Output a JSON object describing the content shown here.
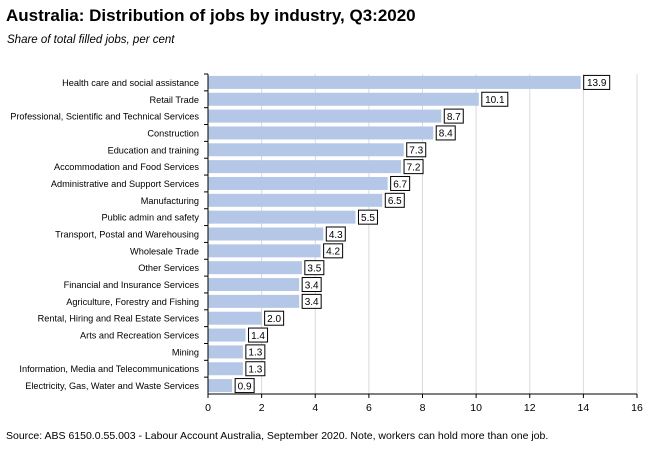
{
  "title": "Australia:  Distribution  of jobs by industry,  Q3:2020",
  "subtitle": "Share of total filled jobs, per cent",
  "source": "Source: ABS 6150.0.55.003 - Labour Account Australia, September 2020.  Note, workers can hold more than one job.",
  "colors": {
    "bar": "#b4c7e7",
    "grid": "#d9d9d9",
    "axis": "#000000",
    "label_border": "#000000"
  },
  "chart_data": {
    "type": "bar",
    "orientation": "horizontal",
    "categories": [
      "Health care and social assistance",
      "Retail Trade",
      "Professional, Scientific and Technical Services",
      "Construction",
      "Education and training",
      "Accommodation and Food Services",
      "Administrative and Support Services",
      "Manufacturing",
      "Public admin and safety",
      "Transport, Postal and Warehousing",
      "Wholesale Trade",
      "Other Services",
      "Financial and Insurance Services",
      "Agriculture, Forestry and Fishing",
      "Rental, Hiring and Real Estate Services",
      "Arts and Recreation Services",
      "Mining",
      "Information, Media and Telecommunications",
      "Electricity, Gas, Water and Waste Services"
    ],
    "values": [
      13.9,
      10.1,
      8.7,
      8.4,
      7.3,
      7.2,
      6.7,
      6.5,
      5.5,
      4.3,
      4.2,
      3.5,
      3.4,
      3.4,
      2.0,
      1.4,
      1.3,
      1.3,
      0.9
    ],
    "data_labels": [
      "13.9",
      "10.1",
      "8.7",
      "8.4",
      "7.3",
      "7.2",
      "6.7",
      "6.5",
      "5.5",
      "4.3",
      "4.2",
      "3.5",
      "3.4",
      "3.4",
      "2.0",
      "1.4",
      "1.3",
      "1.3",
      "0.9"
    ],
    "xlim": [
      0,
      16
    ],
    "xticks": [
      "0",
      "2",
      "4",
      "6",
      "8",
      "10",
      "12",
      "14",
      "16"
    ],
    "grid": true,
    "legend": false
  }
}
